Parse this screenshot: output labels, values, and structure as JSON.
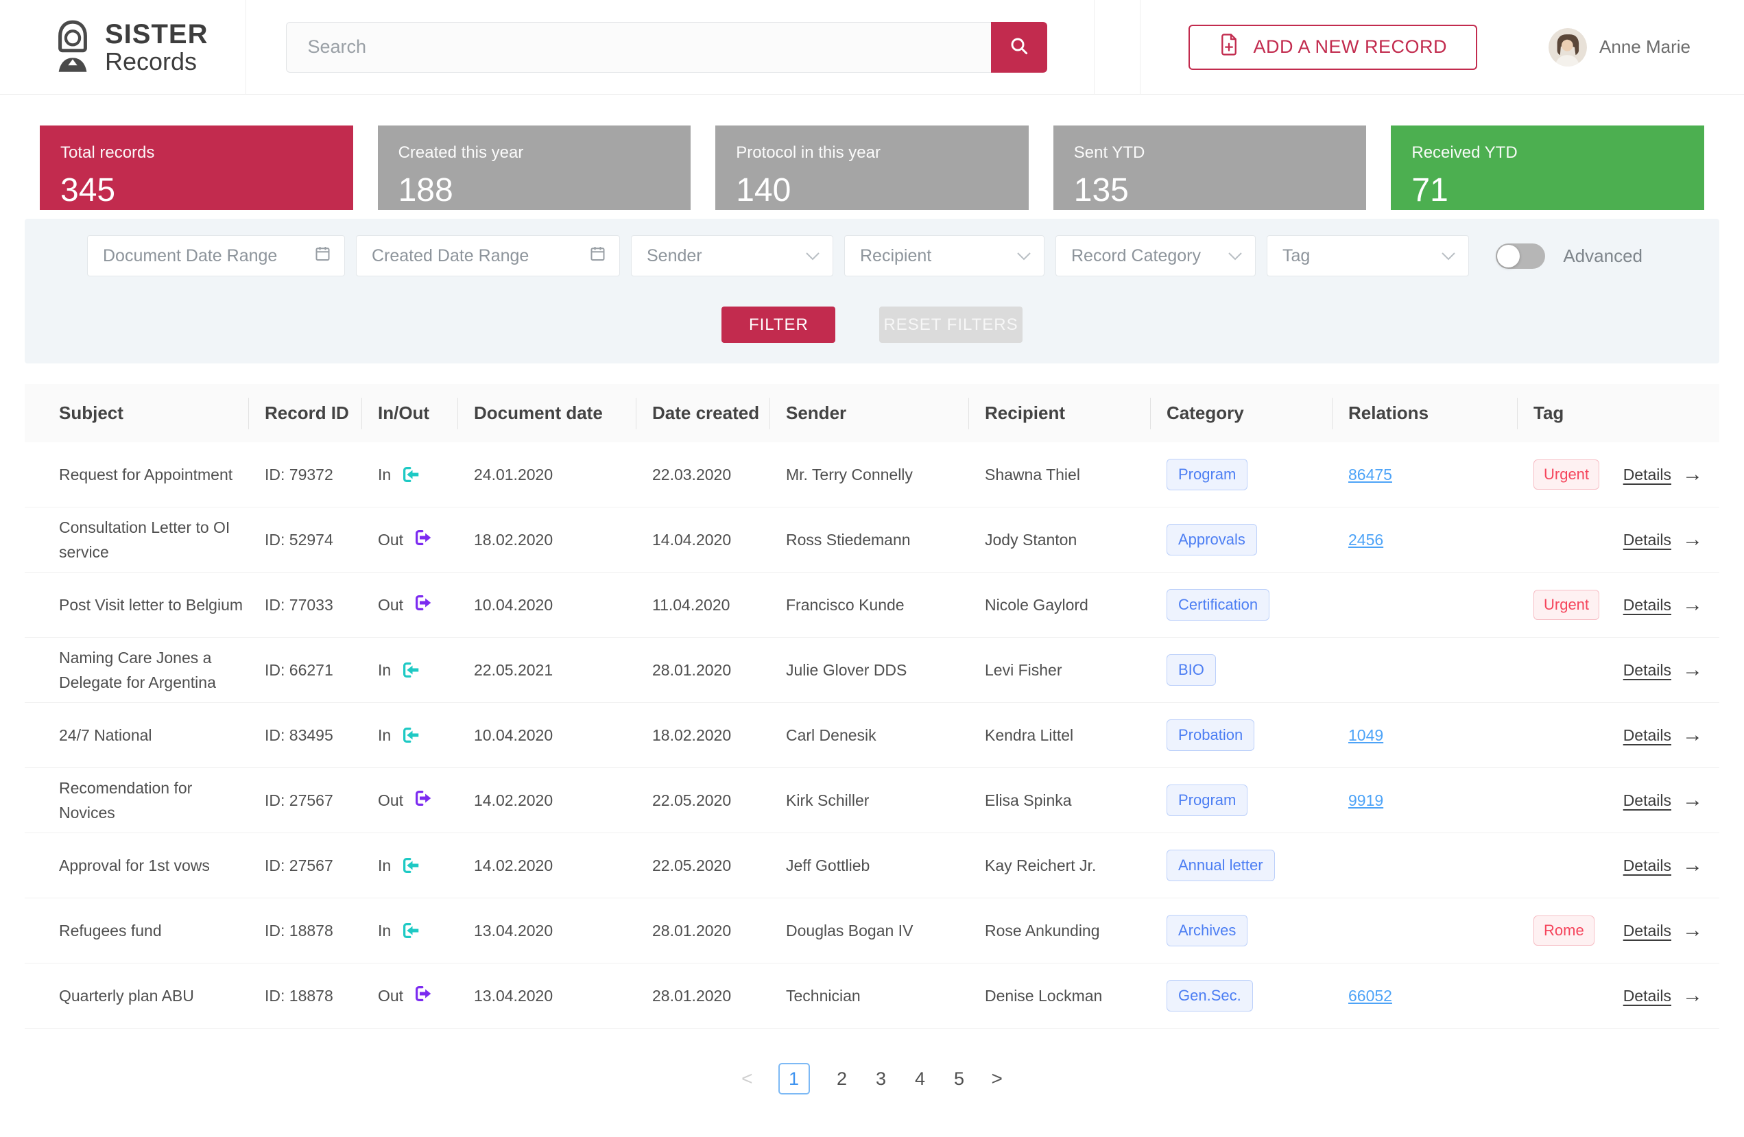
{
  "colors": {
    "primary": "#c22b4e",
    "card_gray": "#a5a5a5",
    "card_green": "#4caf50",
    "in_teal": "#1ec9c4",
    "out_purple": "#7c2bf0",
    "category_blue": "#4c7ef3",
    "relation_link_blue": "#4da3f7",
    "tag_red": "#f5455c",
    "pagination_active_blue": "#3f94f0"
  },
  "header": {
    "brand": {
      "line1": "SISTER",
      "line2": "Records"
    },
    "search": {
      "placeholder": "Search"
    },
    "add_button_label": "ADD  A NEW RECORD",
    "user_name": "Anne Marie"
  },
  "stats": [
    {
      "label": "Total records",
      "value": "345",
      "style": "primary"
    },
    {
      "label": "Created this year",
      "value": "188",
      "style": "gray"
    },
    {
      "label": "Protocol in this year",
      "value": "140",
      "style": "gray"
    },
    {
      "label": "Sent YTD",
      "value": "135",
      "style": "gray"
    },
    {
      "label": "Received YTD",
      "value": "71",
      "style": "green"
    }
  ],
  "filters": {
    "fields": [
      {
        "label": "Document Date Range",
        "icon": "calendar"
      },
      {
        "label": "Created Date Range",
        "icon": "calendar"
      },
      {
        "label": "Sender",
        "icon": "chevron"
      },
      {
        "label": "Recipient",
        "icon": "chevron"
      },
      {
        "label": "Record Category",
        "icon": "chevron"
      },
      {
        "label": "Tag",
        "icon": "chevron"
      }
    ],
    "advanced_label": "Advanced",
    "filter_button": "FILTER",
    "reset_button": "RESET FILTERS"
  },
  "table": {
    "columns": [
      "Subject",
      "Record ID",
      "In/Out",
      "Document date",
      "Date created",
      "Sender",
      "Recipient",
      "Category",
      "Relations",
      "Tag"
    ],
    "details_label": "Details",
    "rows": [
      {
        "subject": "Request for Appointment",
        "record_id": "ID: 79372",
        "direction": "In",
        "document_date": "24.01.2020",
        "date_created": "22.03.2020",
        "sender": "Mr. Terry Connelly",
        "recipient": "Shawna Thiel",
        "category": "Program",
        "relation": "86475",
        "tag": "Urgent"
      },
      {
        "subject": "Consultation Letter to OI service",
        "record_id": "ID: 52974",
        "direction": "Out",
        "document_date": "18.02.2020",
        "date_created": "14.04.2020",
        "sender": "Ross Stiedemann",
        "recipient": "Jody Stanton",
        "category": "Approvals",
        "relation": "2456",
        "tag": null
      },
      {
        "subject": "Post Visit letter to Belgium",
        "record_id": "ID: 77033",
        "direction": "Out",
        "document_date": "10.04.2020",
        "date_created": "11.04.2020",
        "sender": "Francisco Kunde",
        "recipient": "Nicole Gaylord",
        "category": "Certification",
        "relation": null,
        "tag": "Urgent"
      },
      {
        "subject": "Naming Care Jones a Delegate for Argentina",
        "record_id": "ID: 66271",
        "direction": "In",
        "document_date": "22.05.2021",
        "date_created": "28.01.2020",
        "sender": "Julie Glover DDS",
        "recipient": "Levi Fisher",
        "category": "BIO",
        "relation": null,
        "tag": null
      },
      {
        "subject": "24/7 National",
        "record_id": "ID: 83495",
        "direction": "In",
        "document_date": "10.04.2020",
        "date_created": "18.02.2020",
        "sender": "Carl Denesik",
        "recipient": "Kendra Littel",
        "category": "Probation",
        "relation": "1049",
        "tag": null
      },
      {
        "subject": "Recomendation for Novices",
        "record_id": "ID: 27567",
        "direction": "Out",
        "document_date": "14.02.2020",
        "date_created": "22.05.2020",
        "sender": "Kirk Schiller",
        "recipient": "Elisa Spinka",
        "category": "Program",
        "relation": "9919",
        "tag": null
      },
      {
        "subject": "Approval for 1st vows",
        "record_id": "ID: 27567",
        "direction": "In",
        "document_date": "14.02.2020",
        "date_created": "22.05.2020",
        "sender": "Jeff Gottlieb",
        "recipient": "Kay Reichert Jr.",
        "category": "Annual letter",
        "relation": null,
        "tag": null
      },
      {
        "subject": "Refugees fund",
        "record_id": "ID: 18878",
        "direction": "In",
        "document_date": "13.04.2020",
        "date_created": "28.01.2020",
        "sender": "Douglas Bogan IV",
        "recipient": "Rose Ankunding",
        "category": "Archives",
        "relation": null,
        "tag": "Rome"
      },
      {
        "subject": "Quarterly plan ABU",
        "record_id": "ID: 18878",
        "direction": "Out",
        "document_date": "13.04.2020",
        "date_created": "28.01.2020",
        "sender": "Technician",
        "recipient": "Denise Lockman",
        "category": "Gen.Sec.",
        "relation": "66052",
        "tag": null
      }
    ]
  },
  "icons": {
    "details_arrow": "→"
  },
  "pagination": {
    "prev_label": "<",
    "pages": [
      "1",
      "2",
      "3",
      "4",
      "5"
    ],
    "active": "1",
    "next_label": ">"
  }
}
